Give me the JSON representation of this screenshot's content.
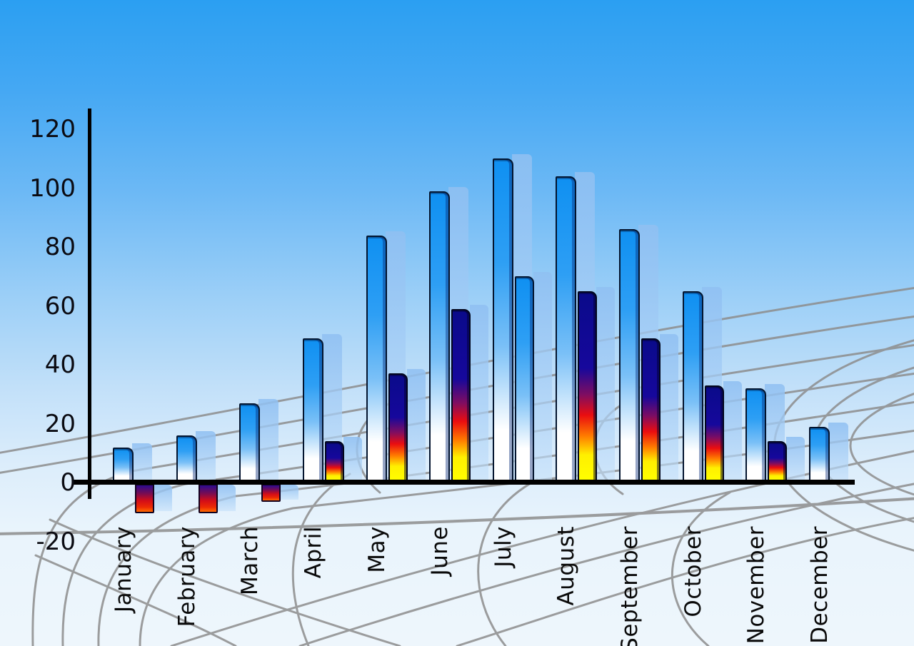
{
  "chart_data": {
    "type": "bar",
    "title": "",
    "xlabel": "",
    "ylabel": "",
    "categories": [
      "January",
      "February",
      "March",
      "April",
      "May",
      "June",
      "July",
      "August",
      "September",
      "October",
      "November",
      "December"
    ],
    "series": [
      {
        "name": "primary-blue-bars",
        "values": [
          12,
          16,
          27,
          49,
          84,
          99,
          110,
          104,
          86,
          65,
          32,
          19
        ]
      },
      {
        "name": "secondary-accent-bars",
        "values": [
          -10,
          -10,
          -6,
          14,
          37,
          59,
          70,
          65,
          49,
          33,
          14,
          null
        ],
        "bar_styles": [
          "negative",
          "negative",
          "negative",
          "rainbow",
          "rainbow",
          "rainbow",
          "blue",
          "rainbow",
          "rainbow",
          "rainbow",
          "rainbow",
          null
        ]
      }
    ],
    "y_ticks": [
      120,
      100,
      80,
      60,
      40,
      20,
      0,
      -20
    ],
    "ylim": [
      -20,
      120
    ],
    "grid": true,
    "legend": "none",
    "layout_hints": {
      "x_tick_label_rotation_deg": 90,
      "echo_shadow_bars": true
    }
  },
  "colors": {
    "sky_top": "#2b9ff2",
    "sky_bottom": "#eef6fc",
    "bar_blue_top": "#0f90f2",
    "bar_fade_bottom": "#ffffff",
    "rainbow_navy": "#14089c",
    "rainbow_red": "#ea0d10",
    "rainbow_yellow": "#ffff00",
    "negative_top_navy": "#2c0b8e",
    "negative_red": "#d30d18",
    "echo_bar_blue": "#a8cff6",
    "grid_gray": "#8d8d8d",
    "axis_black": "#000000",
    "label_black": "#0a0a0a"
  }
}
